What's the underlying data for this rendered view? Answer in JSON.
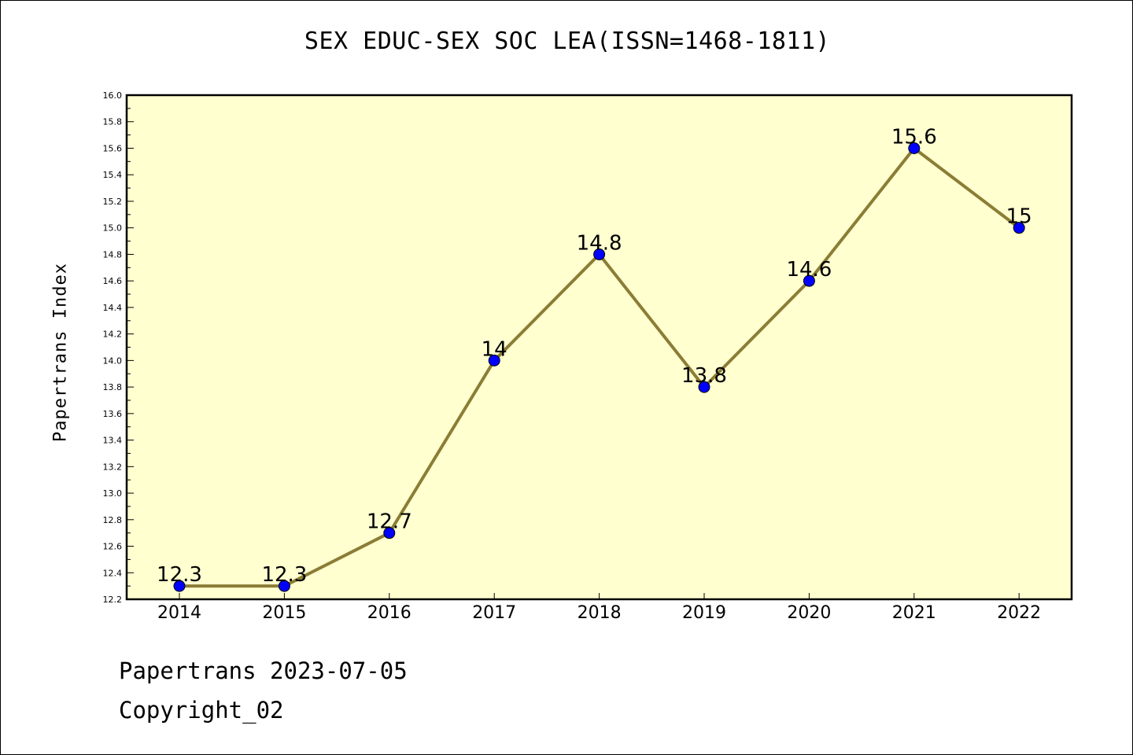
{
  "chart_data": {
    "type": "line",
    "title": "SEX EDUC-SEX SOC LEA(ISSN=1468-1811)",
    "xlabel": "",
    "ylabel": "Papertrans Index",
    "categories": [
      "2014",
      "2015",
      "2016",
      "2017",
      "2018",
      "2019",
      "2020",
      "2021",
      "2022"
    ],
    "series": [
      {
        "values": [
          12.3,
          12.3,
          12.7,
          14,
          14.8,
          13.8,
          14.6,
          15.6,
          15
        ]
      }
    ],
    "data_labels": [
      "12.3",
      "12.3",
      "12.7",
      "14",
      "14.8",
      "13.8",
      "14.6",
      "15.6",
      "15"
    ],
    "ylim": [
      12.2,
      16.0
    ],
    "y_ticks": [
      "12.2",
      "12.4",
      "12.6",
      "12.8",
      "13.0",
      "13.2",
      "13.4",
      "13.6",
      "13.8",
      "14.0",
      "14.2",
      "14.4",
      "14.6",
      "14.8",
      "15.0",
      "15.2",
      "15.4",
      "15.6",
      "15.8",
      "16.0"
    ],
    "grid": false,
    "legend": "none",
    "colors": {
      "plot_background": "#ffffd0",
      "line": "#8b7d35",
      "marker": "#0000ff"
    }
  },
  "footer": {
    "date_line": "Papertrans 2023-07-05",
    "copyright": "Copyright_02"
  }
}
